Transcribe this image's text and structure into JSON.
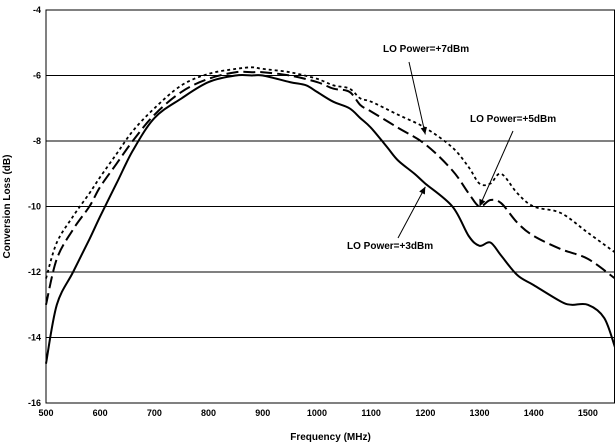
{
  "chart_data": {
    "type": "line",
    "title": "",
    "xlabel": "Frequency (MHz)",
    "ylabel": "Conversion Loss (dB)",
    "xlim": [
      500,
      1550
    ],
    "ylim": [
      -16,
      -4
    ],
    "x_ticks": [
      500,
      600,
      700,
      800,
      900,
      1000,
      1100,
      1200,
      1300,
      1400,
      1500
    ],
    "y_ticks": [
      -4,
      -6,
      -8,
      -10,
      -12,
      -14,
      -16
    ],
    "grid": "horizontal",
    "legend": "none",
    "series": [
      {
        "name": "LO Power=+3dBm",
        "line_style": "solid",
        "x": [
          500,
          520,
          550,
          580,
          600,
          630,
          660,
          700,
          750,
          800,
          850,
          880,
          900,
          950,
          980,
          1000,
          1030,
          1060,
          1080,
          1100,
          1130,
          1150,
          1180,
          1200,
          1250,
          1280,
          1300,
          1320,
          1340,
          1370,
          1400,
          1450,
          1470,
          1500,
          1530,
          1550
        ],
        "y": [
          -14.8,
          -13.0,
          -12.0,
          -11.0,
          -10.3,
          -9.3,
          -8.3,
          -7.3,
          -6.7,
          -6.2,
          -6.0,
          -6.0,
          -6.0,
          -6.2,
          -6.3,
          -6.5,
          -6.8,
          -7.0,
          -7.3,
          -7.6,
          -8.2,
          -8.6,
          -9.0,
          -9.3,
          -10.0,
          -10.9,
          -11.2,
          -11.1,
          -11.5,
          -12.1,
          -12.4,
          -12.9,
          -13.0,
          -13.0,
          -13.4,
          -14.3
        ]
      },
      {
        "name": "LO Power=+5dBm",
        "line_style": "dash",
        "x": [
          500,
          520,
          550,
          580,
          600,
          630,
          660,
          700,
          750,
          800,
          850,
          880,
          900,
          950,
          1000,
          1030,
          1060,
          1080,
          1100,
          1150,
          1200,
          1250,
          1280,
          1300,
          1320,
          1340,
          1370,
          1400,
          1450,
          1500,
          1550
        ],
        "y": [
          -13.0,
          -11.6,
          -10.7,
          -10.0,
          -9.4,
          -8.7,
          -8.0,
          -7.2,
          -6.5,
          -6.1,
          -5.9,
          -5.9,
          -5.9,
          -6.0,
          -6.2,
          -6.4,
          -6.5,
          -6.9,
          -7.1,
          -7.6,
          -8.1,
          -8.9,
          -9.6,
          -10.0,
          -9.8,
          -9.9,
          -10.5,
          -10.9,
          -11.3,
          -11.6,
          -12.2
        ]
      },
      {
        "name": "LO Power=+7dBm",
        "line_style": "dot",
        "x": [
          500,
          520,
          550,
          580,
          600,
          630,
          660,
          700,
          750,
          800,
          850,
          880,
          900,
          950,
          1000,
          1030,
          1060,
          1080,
          1100,
          1150,
          1200,
          1250,
          1280,
          1300,
          1320,
          1340,
          1370,
          1400,
          1450,
          1500,
          1550
        ],
        "y": [
          -12.2,
          -11.1,
          -10.3,
          -9.6,
          -9.1,
          -8.4,
          -7.7,
          -7.0,
          -6.3,
          -5.95,
          -5.8,
          -5.75,
          -5.8,
          -5.9,
          -6.1,
          -6.3,
          -6.4,
          -6.7,
          -6.8,
          -7.2,
          -7.6,
          -8.2,
          -8.8,
          -9.3,
          -9.3,
          -9.0,
          -9.6,
          -10.0,
          -10.2,
          -10.8,
          -11.4
        ]
      }
    ],
    "annotations": [
      {
        "text": "LO Power=+7dBm",
        "arrow_to": [
          1200,
          -7.8
        ]
      },
      {
        "text": "LO Power=+5dBm",
        "arrow_to": [
          1300,
          -10.0
        ]
      },
      {
        "text": "LO Power=+3dBm",
        "arrow_to": [
          1200,
          -9.4
        ]
      }
    ]
  }
}
